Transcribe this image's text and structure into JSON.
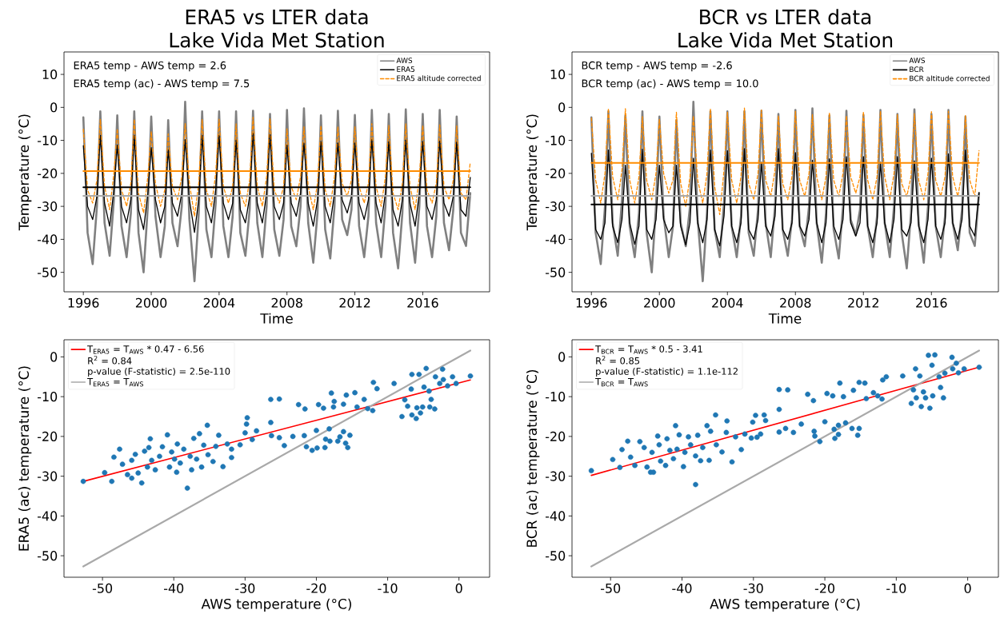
{
  "chart_data": [
    {
      "type": "line",
      "title": "ERA5 vs LTER data",
      "subtitle": "Lake Vida Met Station",
      "xlabel": "Time",
      "ylabel": "Temperature (°C)",
      "annotations": [
        "ERA5 temp - AWS temp = 2.6",
        "ERA5 temp (ac) - AWS temp = 7.5"
      ],
      "xlim": [
        1994.86,
        2019.94
      ],
      "ylim": [
        -55.9,
        16.8
      ],
      "xticks": [
        1996,
        2000,
        2004,
        2008,
        2012,
        2016
      ],
      "yticks": [
        -50,
        -40,
        -30,
        -20,
        -10,
        0,
        10
      ],
      "legend": "top right",
      "x": [
        1996,
        1996.25,
        1996.55,
        1996.8,
        1997,
        1997.25,
        1997.55,
        1997.8,
        1998,
        1998.25,
        1998.55,
        1998.8,
        1999,
        1999.25,
        1999.55,
        1999.8,
        2000,
        2000.25,
        2000.55,
        2000.8,
        2001,
        2001.25,
        2001.55,
        2001.8,
        2002,
        2002.25,
        2002.55,
        2002.8,
        2003,
        2003.25,
        2003.55,
        2003.8,
        2004,
        2004.25,
        2004.55,
        2004.8,
        2005,
        2005.25,
        2005.55,
        2005.8,
        2006,
        2006.25,
        2006.55,
        2006.8,
        2007,
        2007.25,
        2007.55,
        2007.8,
        2008,
        2008.25,
        2008.55,
        2008.8,
        2009,
        2009.25,
        2009.55,
        2009.8,
        2010,
        2010.25,
        2010.55,
        2010.8,
        2011,
        2011.25,
        2011.55,
        2011.8,
        2012,
        2012.25,
        2012.55,
        2012.8,
        2013,
        2013.25,
        2013.55,
        2013.8,
        2014,
        2014.25,
        2014.55,
        2014.8,
        2015,
        2015.25,
        2015.55,
        2015.8,
        2016,
        2016.25,
        2016.55,
        2016.8,
        2017,
        2017.25,
        2017.55,
        2017.8,
        2018,
        2018.25,
        2018.55,
        2018.8
      ],
      "series": [
        {
          "name": "AWS",
          "color": "#808080",
          "values": [
            -3,
            -38,
            -47.5,
            -30,
            -1.2,
            -35,
            -45,
            -28,
            -2.4,
            -36,
            -45.4,
            -32,
            -1.2,
            -38,
            -50,
            -30,
            -2.8,
            -33,
            -45.4,
            -36,
            -3.9,
            -35,
            -42.1,
            -30,
            1.7,
            -34,
            -52.7,
            -32,
            -1.2,
            -37,
            -45.4,
            -29,
            -1.2,
            -36,
            -45.4,
            -33,
            -1.2,
            -38,
            -45,
            -31,
            -1,
            -35,
            -45.4,
            -30,
            -2,
            -37,
            -45,
            -34,
            -0.8,
            -36,
            -42.1,
            -30,
            -0.3,
            -35,
            -47.1,
            -32,
            -2.4,
            -37,
            -45.8,
            -30,
            -1,
            -34,
            -38.7,
            -31,
            -2.3,
            -36,
            -45.4,
            -33,
            -0.8,
            -35,
            -45.4,
            -30,
            -2,
            -38,
            -48.8,
            -32,
            -0.6,
            -35,
            -47.1,
            -30,
            -2,
            -36,
            -45.4,
            -33,
            -0.8,
            -35,
            -43.3,
            -31,
            -2.8,
            -38,
            -42,
            -26
          ]
        },
        {
          "name": "ERA5",
          "color": "#000000",
          "values": [
            -11.6,
            -30,
            -34,
            -27,
            -8.5,
            -29,
            -36,
            -25,
            -11.4,
            -30,
            -35,
            -28,
            -8.5,
            -31,
            -37,
            -26,
            -12.2,
            -28,
            -35,
            -30,
            -12.9,
            -29,
            -33,
            -26,
            -9.8,
            -28,
            -37.9,
            -28,
            -8.5,
            -30,
            -35,
            -25,
            -8.5,
            -29,
            -34,
            -29,
            -9.9,
            -31,
            -35,
            -27,
            -7.9,
            -29,
            -35,
            -26,
            -8.3,
            -30,
            -34,
            -29,
            -11.4,
            -29,
            -33,
            -26,
            -10.8,
            -29,
            -36,
            -28,
            -10.4,
            -30,
            -35,
            -26,
            -10.8,
            -28,
            -32,
            -27,
            -10.8,
            -29,
            -34,
            -28,
            -9.8,
            -29,
            -35,
            -26,
            -10.4,
            -31,
            -36,
            -28,
            -9.9,
            -29,
            -36,
            -26,
            -10.4,
            -30,
            -34,
            -28,
            -10.2,
            -29,
            -33,
            -27,
            -10.5,
            -31,
            -33,
            -21.2
          ]
        },
        {
          "name": "ERA5 altitude corrected",
          "color": "#ff8c00",
          "line_style": "dashed",
          "values": [
            -6.6,
            -25,
            -29,
            -22,
            -3.6,
            -24,
            -31,
            -20,
            -6.5,
            -25,
            -30,
            -23,
            -3.6,
            -26,
            -32,
            -21,
            -7.3,
            -23,
            -30,
            -25,
            -8,
            -24,
            -28,
            -21,
            -4.9,
            -23,
            -33,
            -23,
            -3.6,
            -25,
            -30,
            -20,
            -3.6,
            -24,
            -29,
            -24,
            -5,
            -26,
            -30,
            -22,
            -3,
            -24,
            -30,
            -21,
            -3.4,
            -25,
            -29,
            -24,
            -6.5,
            -24,
            -28,
            -21,
            -5.9,
            -24,
            -31,
            -23,
            -5.5,
            -25,
            -30,
            -21,
            -5.9,
            -23,
            -27,
            -22,
            -5.9,
            -24,
            -29,
            -23,
            -4.9,
            -24,
            -30,
            -21,
            -5.5,
            -26,
            -31,
            -23,
            -5,
            -24,
            -31,
            -21,
            -5.5,
            -25,
            -29,
            -23,
            -5.3,
            -24,
            -28,
            -22,
            -5.6,
            -26,
            -28,
            -16.6
          ]
        },
        {
          "color": "#a9a9a9",
          "x": [
            1996,
            2018.8
          ],
          "values": [
            -26.8,
            -26.8
          ]
        },
        {
          "color": "#000000",
          "x": [
            1996,
            2018.8
          ],
          "values": [
            -24.2,
            -24.2
          ]
        },
        {
          "color": "#ff8c00",
          "x": [
            1996,
            2018.8
          ],
          "values": [
            -19.3,
            -19.3
          ]
        }
      ]
    },
    {
      "type": "line",
      "title": "BCR vs LTER data",
      "subtitle": "Lake Vida Met Station",
      "xlabel": "Time",
      "ylabel": "Temperature (°C)",
      "annotations": [
        "BCR temp - AWS temp = -2.6",
        "BCR temp (ac) - AWS temp = 10.0"
      ],
      "xlim": [
        1994.86,
        2019.94
      ],
      "ylim": [
        -55.9,
        16.8
      ],
      "xticks": [
        1996,
        2000,
        2004,
        2008,
        2012,
        2016
      ],
      "yticks": [
        -50,
        -40,
        -30,
        -20,
        -10,
        0,
        10
      ],
      "legend": "top right",
      "x": [
        1996,
        1996.25,
        1996.55,
        1996.8,
        1997,
        1997.25,
        1997.55,
        1997.8,
        1998,
        1998.25,
        1998.55,
        1998.8,
        1999,
        1999.25,
        1999.55,
        1999.8,
        2000,
        2000.25,
        2000.55,
        2000.8,
        2001,
        2001.25,
        2001.55,
        2001.8,
        2002,
        2002.25,
        2002.55,
        2002.8,
        2003,
        2003.25,
        2003.55,
        2003.8,
        2004,
        2004.25,
        2004.55,
        2004.8,
        2005,
        2005.25,
        2005.55,
        2005.8,
        2006,
        2006.25,
        2006.55,
        2006.8,
        2007,
        2007.25,
        2007.55,
        2007.8,
        2008,
        2008.25,
        2008.55,
        2008.8,
        2009,
        2009.25,
        2009.55,
        2009.8,
        2010,
        2010.25,
        2010.55,
        2010.8,
        2011,
        2011.25,
        2011.55,
        2011.8,
        2012,
        2012.25,
        2012.55,
        2012.8,
        2013,
        2013.25,
        2013.55,
        2013.8,
        2014,
        2014.25,
        2014.55,
        2014.8,
        2015,
        2015.25,
        2015.55,
        2015.8,
        2016,
        2016.25,
        2016.55,
        2016.8,
        2017,
        2017.25,
        2017.55,
        2017.8,
        2018,
        2018.25,
        2018.55,
        2018.8
      ],
      "series": [
        {
          "name": "AWS",
          "color": "#808080",
          "values": [
            -3,
            -38,
            -47.5,
            -30,
            -1.2,
            -35,
            -45,
            -28,
            -2.4,
            -36,
            -45.4,
            -32,
            -1.2,
            -38,
            -50,
            -30,
            -2.8,
            -33,
            -45.4,
            -36,
            -3.9,
            -35,
            -42.1,
            -30,
            1.7,
            -34,
            -52.7,
            -32,
            -1.2,
            -37,
            -45.4,
            -29,
            -1.2,
            -36,
            -45.4,
            -33,
            -1.2,
            -38,
            -45,
            -31,
            -1,
            -35,
            -45.4,
            -30,
            -2,
            -37,
            -45,
            -34,
            -0.8,
            -36,
            -42.1,
            -30,
            -0.3,
            -35,
            -47.1,
            -32,
            -2.4,
            -37,
            -45.8,
            -30,
            -1,
            -34,
            -38.7,
            -31,
            -2.3,
            -36,
            -45.4,
            -33,
            -0.8,
            -35,
            -45.4,
            -30,
            -2,
            -38,
            -48.8,
            -32,
            -0.6,
            -35,
            -47.1,
            -30,
            -2,
            -36,
            -45.4,
            -33,
            -0.8,
            -35,
            -43.3,
            -31,
            -2.8,
            -38,
            -42,
            -26
          ]
        },
        {
          "name": "BCR",
          "color": "#000000",
          "values": [
            -13.9,
            -37,
            -40,
            -35,
            -12.9,
            -36,
            -41,
            -34,
            -17.5,
            -35,
            -41.5,
            -36,
            -12.7,
            -37,
            -40,
            -34,
            -17.5,
            -34,
            -38,
            -36,
            -17.5,
            -36,
            -41.7,
            -35,
            -15.4,
            -35,
            -41,
            -34,
            -12.9,
            -37,
            -42,
            -33,
            -13.1,
            -36,
            -41,
            -35,
            -12.5,
            -37,
            -40,
            -34,
            -16.6,
            -36,
            -39,
            -33,
            -12.5,
            -37,
            -40,
            -35,
            -13.7,
            -36,
            -39,
            -34,
            -16,
            -35,
            -41,
            -35,
            -15.6,
            -36,
            -40,
            -34,
            -14.9,
            -35,
            -39,
            -35,
            -14.9,
            -36,
            -41,
            -35,
            -16.6,
            -35,
            -41,
            -34,
            -14.9,
            -37,
            -39,
            -35,
            -16.2,
            -36,
            -41,
            -34,
            -15.4,
            -36,
            -40,
            -35,
            -14.1,
            -35,
            -40,
            -34,
            -12.9,
            -36,
            -39,
            -25.8
          ]
        },
        {
          "name": "BCR altitude corrected",
          "color": "#ff8c00",
          "line_style": "dashed",
          "values": [
            -3.2,
            -22,
            -29,
            -20,
            -0.3,
            -21,
            -28,
            -19,
            -0.4,
            -22,
            -29,
            -21,
            -2.8,
            -22,
            -28,
            -20,
            -3.5,
            -20,
            -26,
            -22,
            -1.5,
            -23,
            -30,
            -21,
            -2.6,
            -22,
            -29,
            -20,
            -0.4,
            -24,
            -32.5,
            -19,
            -1.5,
            -22,
            -29,
            -21,
            -0.2,
            -23,
            -28,
            -20,
            -0.8,
            -22,
            -27,
            -19,
            -2.5,
            -23,
            -28,
            -21,
            -1.2,
            -22,
            -27,
            -20,
            -2.2,
            -21,
            -28,
            -21,
            -1.6,
            -22,
            -27,
            -20,
            -2.5,
            -21,
            -26,
            -21,
            -1.3,
            -22,
            -28,
            -21,
            -1.2,
            -21,
            -28,
            -20,
            -2.2,
            -23,
            -27,
            -21,
            -1.9,
            -22,
            -28,
            -20,
            -1.3,
            -22,
            -27,
            -21,
            -1.2,
            -21,
            -27,
            -20,
            -2.5,
            -22,
            -27,
            -13.1
          ]
        },
        {
          "color": "#a9a9a9",
          "x": [
            1996,
            2018.8
          ],
          "values": [
            -26.8,
            -26.8
          ]
        },
        {
          "color": "#000000",
          "x": [
            1996,
            2018.8
          ],
          "values": [
            -29.4,
            -29.4
          ]
        },
        {
          "color": "#ff8c00",
          "x": [
            1996,
            2018.8
          ],
          "values": [
            -16.8,
            -16.8
          ]
        }
      ]
    },
    {
      "type": "scatter",
      "xlabel": "AWS temperature (°C)",
      "ylabel": "ERA5 (ac) temperature (°C)",
      "annotations": [
        "R$^{2}$ = 0.84",
        "p-value (F-statistic) = 2.5e-110"
      ],
      "xlim": [
        -55.4,
        4.3
      ],
      "ylim": [
        -55.4,
        4.3
      ],
      "xticks": [
        -50,
        -40,
        -30,
        -20,
        -10,
        0
      ],
      "yticks": [
        -50,
        -40,
        -30,
        -20,
        -10,
        0
      ],
      "legend": "top left",
      "series": [
        {
          "type": "scatter",
          "color": "#1f77b4",
          "marker": "circle",
          "x": [
            -52.7,
            -49.7,
            -48.7,
            -48.4,
            -47.6,
            -47.2,
            -46.5,
            -45.9,
            -45.4,
            -45.9,
            -45.0,
            -44.5,
            -44.1,
            -43.5,
            -43.3,
            -43.7,
            -43.1,
            -42.6,
            -42.0,
            -41.6,
            -40.9,
            -40.6,
            -40.3,
            -39.9,
            -39.5,
            -39.6,
            -39.1,
            -38.6,
            -38.1,
            -37.7,
            -37.5,
            -37.2,
            -36.8,
            -36.4,
            -36.1,
            -35.8,
            -35.3,
            -35.2,
            -34.5,
            -34.1,
            -33.7,
            -33.1,
            -32.5,
            -31.9,
            -31.9,
            -30.7,
            -30.0,
            -29.8,
            -29.7,
            -29.0,
            -28.4,
            -26.4,
            -26.4,
            -25.2,
            -26.3,
            -25.2,
            -24.5,
            -23.3,
            -22.5,
            -21.6,
            -21.7,
            -21.4,
            -20.6,
            -19.9,
            -20.0,
            -19.7,
            -19.0,
            -18.8,
            -18.7,
            -18.2,
            -18.1,
            -17.9,
            -17.6,
            -17.5,
            -17.0,
            -16.7,
            -16.2,
            -16.2,
            -15.9,
            -15.6,
            -15.3,
            -15.8,
            -14.6,
            -14.3,
            -13.3,
            -12.8,
            -12.1,
            -12.0,
            -11.5,
            -9.1,
            -8.0,
            -7.6,
            -7.2,
            -6.6,
            -6.7,
            -6.6,
            -6.0,
            -5.9,
            -5.6,
            -5.4,
            -5.1,
            -4.9,
            -4.6,
            -4.2,
            -3.9,
            -4.1,
            -3.4,
            -3.3,
            -2.7,
            -2.3,
            -2.2,
            -1.6,
            -0.9,
            -0.4,
            1.6
          ],
          "values": [
            -31.3,
            -29.1,
            -31.3,
            -25.2,
            -23.2,
            -27.0,
            -29.6,
            -26.0,
            -24.5,
            -30.5,
            -29.2,
            -31.7,
            -23.7,
            -22.8,
            -20.6,
            -27.7,
            -26.0,
            -28.4,
            -25.0,
            -22.6,
            -19.6,
            -27.7,
            -23.9,
            -25.7,
            -21.9,
            -29.0,
            -26.7,
            -23.2,
            -33.0,
            -25.0,
            -28.4,
            -20.5,
            -25.7,
            -19.3,
            -27.7,
            -22.2,
            -17.2,
            -24.6,
            -26.3,
            -22.5,
            -19.7,
            -27.6,
            -21.9,
            -25.3,
            -23.2,
            -22.1,
            -19.1,
            -16.9,
            -15.3,
            -20.8,
            -18.6,
            -16.5,
            -10.7,
            -10.6,
            -19.8,
            -20.3,
            -22.3,
            -20.0,
            -12.0,
            -13.1,
            -19.8,
            -22.6,
            -23.5,
            -22.9,
            -18.5,
            -12.0,
            -12.9,
            -22.8,
            -20.7,
            -18.1,
            -21.2,
            -9.1,
            -12.6,
            -11.2,
            -21.2,
            -20.1,
            -18.8,
            -11.9,
            -21.7,
            -22.8,
            -19.7,
            -9.6,
            -9.0,
            -12.6,
            -10.7,
            -13.0,
            -13.5,
            -6.4,
            -8.0,
            -6.7,
            -15.0,
            -10.8,
            -12.4,
            -4.4,
            -8.1,
            -14.6,
            -15.5,
            -12.8,
            -4.4,
            -14.1,
            -12.6,
            -7.6,
            -2.9,
            -8.6,
            -10.7,
            -12.6,
            -13.1,
            -5.0,
            -6.7,
            -3.1,
            -5.7,
            -7.3,
            -5.0,
            -6.7,
            -4.8
          ]
        },
        {
          "type": "line",
          "name": "T$_{ERA5}$ = T$_{AWS}$ * 0.47 - 6.56",
          "color": "#ff0000",
          "x": [
            -52.7,
            1.6
          ],
          "values": [
            -31.3,
            -5.8
          ]
        },
        {
          "type": "line",
          "name": "T$_{ERA5}$ = T$_{AWS}$",
          "color": "#a9a9a9",
          "x": [
            -52.7,
            1.6
          ],
          "values": [
            -52.7,
            1.6
          ]
        }
      ]
    },
    {
      "type": "scatter",
      "xlabel": "AWS temperature (°C)",
      "ylabel": "BCR (ac) temperature (°C)",
      "annotations": [
        "R$^{2}$ = 0.85",
        "p-value (F-statistic) = 1.1e-112"
      ],
      "xlim": [
        -55.4,
        4.3
      ],
      "ylim": [
        -55.4,
        4.3
      ],
      "xticks": [
        -50,
        -40,
        -30,
        -20,
        -10,
        0
      ],
      "yticks": [
        -50,
        -40,
        -30,
        -20,
        -10,
        0
      ],
      "legend": "top left",
      "series": [
        {
          "type": "scatter",
          "color": "#1f77b4",
          "marker": "circle",
          "x": [
            -52.7,
            -49.7,
            -48.7,
            -48.4,
            -47.6,
            -47.2,
            -46.6,
            -45.9,
            -45.3,
            -44.9,
            -44.4,
            -44.0,
            -44.2,
            -43.4,
            -43.2,
            -43.0,
            -42.3,
            -42.1,
            -41.7,
            -41.2,
            -40.9,
            -40.7,
            -40.4,
            -39.8,
            -39.6,
            -39.1,
            -38.8,
            -38.1,
            -38.1,
            -37.8,
            -37.4,
            -37.1,
            -36.5,
            -36.2,
            -36.0,
            -35.3,
            -35.2,
            -34.4,
            -33.7,
            -33.8,
            -33.0,
            -32.5,
            -31.7,
            -31.2,
            -30.3,
            -30.1,
            -29.7,
            -29.5,
            -29.0,
            -28.5,
            -28.3,
            -26.4,
            -26.4,
            -25.2,
            -26.4,
            -25.5,
            -24.4,
            -23.3,
            -22.4,
            -21.6,
            -21.5,
            -21.4,
            -20.7,
            -20.0,
            -19.7,
            -18.9,
            -18.7,
            -18.6,
            -18.1,
            -18.1,
            -17.9,
            -17.4,
            -17.1,
            -16.2,
            -15.4,
            -15.2,
            -16.0,
            -15.2,
            -14.4,
            -14.2,
            -13.2,
            -12.6,
            -12.0,
            -11.9,
            -11.4,
            -9.1,
            -7.9,
            -7.6,
            -7.3,
            -7.2,
            -6.7,
            -6.5,
            -6.2,
            -5.9,
            -5.5,
            -5.3,
            -5.0,
            -4.9,
            -4.6,
            -4.0,
            -3.8,
            -3.4,
            -3.2,
            -2.2,
            -2.1,
            -1.6,
            -1.3,
            -0.5,
            1.6
          ],
          "values": [
            -28.6,
            -25.8,
            -27.8,
            -23.3,
            -21.2,
            -25.2,
            -27.3,
            -21.3,
            -22.8,
            -27.7,
            -29.0,
            -29.0,
            -24.0,
            -19.9,
            -22.1,
            -26.2,
            -27.3,
            -20.6,
            -23.5,
            -25.6,
            -17.3,
            -23.2,
            -19.6,
            -27.6,
            -24.0,
            -20.1,
            -22.1,
            -32.1,
            -24.9,
            -19.7,
            -26.1,
            -22.8,
            -17.3,
            -26.0,
            -18.7,
            -14.6,
            -22.1,
            -23.9,
            -16.1,
            -19.0,
            -26.4,
            -20.1,
            -23.3,
            -19.4,
            -20.4,
            -16.4,
            -14.7,
            -20.2,
            -19.4,
            -14.6,
            -16.0,
            -13.2,
            -8.2,
            -8.3,
            -18.9,
            -18.0,
            -19.0,
            -16.9,
            -9.4,
            -11.0,
            -18.7,
            -19.9,
            -21.3,
            -16.3,
            -9.2,
            -9.8,
            -18.2,
            -20.5,
            -17.2,
            -19.5,
            -6.6,
            -10.0,
            -16.6,
            -18.0,
            -19.7,
            -18.0,
            -8.4,
            -6.4,
            -6.6,
            -10.5,
            -9.0,
            -9.8,
            -10.6,
            -5.8,
            -5.0,
            -4.8,
            -11.7,
            -8.3,
            -3.0,
            -10.3,
            -4.8,
            -12.5,
            -8.8,
            -10.3,
            0.4,
            -12.9,
            -2.1,
            -9.8,
            0.5,
            -5.0,
            -7.7,
            -10.3,
            -4.1,
            -0.1,
            -3.0,
            -1.6,
            -4.0,
            -3.0,
            -2.6
          ]
        },
        {
          "type": "line",
          "name": "T$_{BCR}$ = T$_{AWS}$ * 0.5 - 3.41",
          "color": "#ff0000",
          "x": [
            -52.7,
            1.6
          ],
          "values": [
            -29.8,
            -2.6
          ]
        },
        {
          "type": "line",
          "name": "T$_{BCR}$ = T$_{AWS}$",
          "color": "#a9a9a9",
          "x": [
            -52.7,
            1.6
          ],
          "values": [
            -52.7,
            1.6
          ]
        }
      ]
    }
  ]
}
